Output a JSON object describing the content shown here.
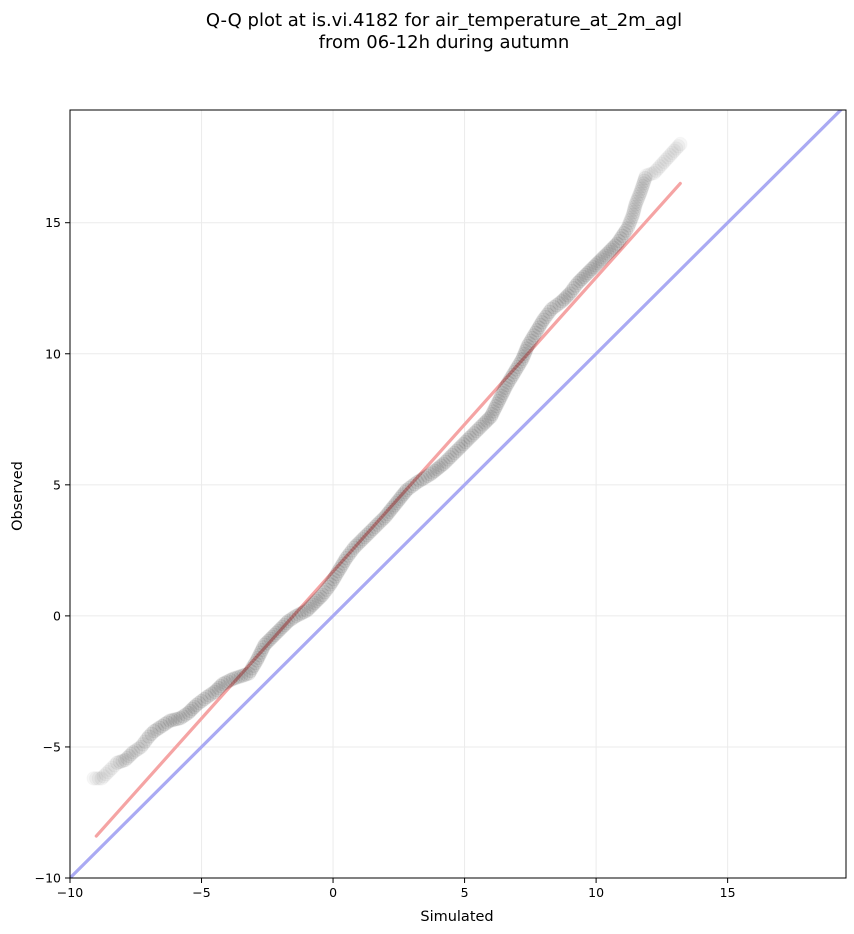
{
  "chart_data": {
    "type": "scatter",
    "title": "Q-Q plot at is.vi.4182 for air_temperature_at_2m_agl",
    "subtitle": "from 06-12h during autumn",
    "xlabel": "Simulated",
    "ylabel": "Observed",
    "xlim": [
      -10,
      19.5
    ],
    "ylim": [
      -10,
      19.3
    ],
    "xticks": [
      -10,
      -5,
      0,
      5,
      10,
      15
    ],
    "yticks": [
      -10,
      -5,
      0,
      5,
      10,
      15
    ],
    "xtick_labels": [
      "−10",
      "−5",
      "0",
      "5",
      "10",
      "15"
    ],
    "ytick_labels": [
      "−10",
      "−5",
      "0",
      "5",
      "10",
      "15"
    ],
    "grid": true,
    "quantiles": [
      [
        -9.1,
        -6.2
      ],
      [
        -8.8,
        -6.2
      ],
      [
        -8.4,
        -5.8
      ],
      [
        -8.2,
        -5.6
      ],
      [
        -7.9,
        -5.5
      ],
      [
        -7.6,
        -5.2
      ],
      [
        -7.3,
        -5.0
      ],
      [
        -7.0,
        -4.6
      ],
      [
        -6.8,
        -4.4
      ],
      [
        -6.5,
        -4.2
      ],
      [
        -6.2,
        -4.0
      ],
      [
        -5.8,
        -3.9
      ],
      [
        -5.5,
        -3.7
      ],
      [
        -5.2,
        -3.4
      ],
      [
        -4.8,
        -3.1
      ],
      [
        -4.5,
        -2.9
      ],
      [
        -4.2,
        -2.6
      ],
      [
        -3.8,
        -2.4
      ],
      [
        -3.5,
        -2.3
      ],
      [
        -3.2,
        -2.2
      ],
      [
        -2.9,
        -1.7
      ],
      [
        -2.6,
        -1.1
      ],
      [
        -2.3,
        -0.8
      ],
      [
        -2.0,
        -0.5
      ],
      [
        -1.7,
        -0.2
      ],
      [
        -1.4,
        0.0
      ],
      [
        -1.0,
        0.2
      ],
      [
        -0.7,
        0.5
      ],
      [
        -0.4,
        0.8
      ],
      [
        -0.1,
        1.2
      ],
      [
        0.2,
        1.7
      ],
      [
        0.5,
        2.2
      ],
      [
        0.8,
        2.6
      ],
      [
        1.2,
        3.0
      ],
      [
        1.6,
        3.4
      ],
      [
        2.0,
        3.8
      ],
      [
        2.4,
        4.3
      ],
      [
        2.8,
        4.8
      ],
      [
        3.2,
        5.1
      ],
      [
        3.7,
        5.4
      ],
      [
        4.2,
        5.8
      ],
      [
        4.7,
        6.3
      ],
      [
        5.2,
        6.8
      ],
      [
        5.7,
        7.3
      ],
      [
        6.0,
        7.6
      ],
      [
        6.3,
        8.2
      ],
      [
        6.6,
        8.8
      ],
      [
        6.9,
        9.3
      ],
      [
        7.2,
        9.8
      ],
      [
        7.4,
        10.3
      ],
      [
        7.7,
        10.8
      ],
      [
        8.0,
        11.3
      ],
      [
        8.3,
        11.7
      ],
      [
        8.7,
        12.0
      ],
      [
        9.0,
        12.3
      ],
      [
        9.3,
        12.7
      ],
      [
        9.6,
        13.0
      ],
      [
        9.9,
        13.3
      ],
      [
        10.2,
        13.6
      ],
      [
        10.5,
        13.9
      ],
      [
        10.8,
        14.2
      ],
      [
        11.0,
        14.5
      ],
      [
        11.2,
        14.8
      ],
      [
        11.4,
        15.3
      ],
      [
        11.5,
        15.7
      ],
      [
        11.7,
        16.2
      ],
      [
        11.9,
        16.8
      ],
      [
        12.2,
        16.9
      ],
      [
        13.2,
        18.0
      ]
    ],
    "reference_lines": [
      {
        "kind": "identity",
        "color": "#aaaaf3",
        "from": [
          -10,
          -10
        ],
        "to": [
          19.5,
          19.5
        ]
      },
      {
        "kind": "fit",
        "color": "#f5a4a4",
        "from": [
          -9.0,
          -8.4
        ],
        "to": [
          13.2,
          16.5
        ]
      }
    ]
  },
  "colors": {
    "marker": "#000000",
    "grid": "#ebebeb",
    "frame": "#000000"
  }
}
